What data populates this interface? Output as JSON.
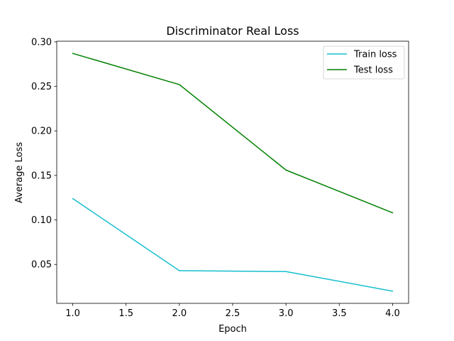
{
  "chart_data": {
    "type": "line",
    "title": "Discriminator Real Loss",
    "xlabel": "Epoch",
    "ylabel": "Average Loss",
    "x": [
      1.0,
      2.0,
      3.0,
      4.0
    ],
    "series": [
      {
        "name": "Train loss",
        "color": "#17becf",
        "values": [
          0.124,
          0.043,
          0.042,
          0.02
        ]
      },
      {
        "name": "Test loss",
        "color": "#008000",
        "values": [
          0.287,
          0.252,
          0.156,
          0.108
        ]
      }
    ],
    "xlim": [
      0.85,
      4.15
    ],
    "ylim": [
      0.0063,
      0.3007
    ],
    "xticks": [
      "1.0",
      "1.5",
      "2.0",
      "2.5",
      "3.0",
      "3.5",
      "4.0"
    ],
    "yticks": [
      "0.05",
      "0.10",
      "0.15",
      "0.20",
      "0.25",
      "0.30"
    ],
    "grid": false,
    "legend_position": "top-right"
  }
}
